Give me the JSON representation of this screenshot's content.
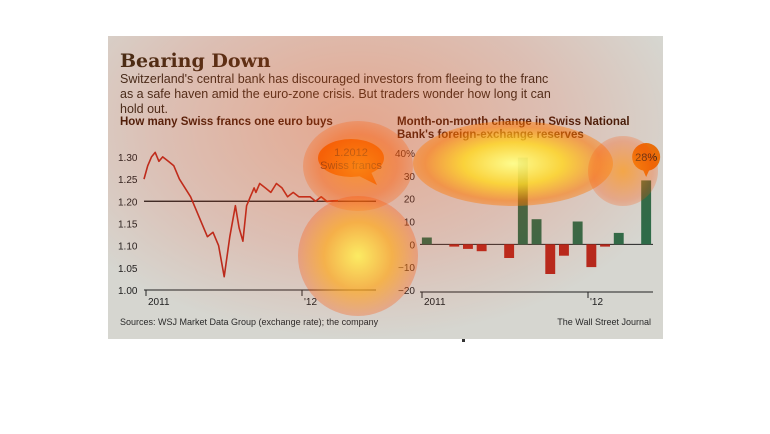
{
  "title": "Bearing Down",
  "subtitle": "Switzerland's central bank has discouraged investors from fleeing to the franc as a safe haven amid the euro-zone crisis. But traders wonder how long it can hold out.",
  "source": "Sources: WSJ Market Data Group (exchange rate); the company",
  "credit": "The Wall Street Journal",
  "colors": {
    "line": "#b5281c",
    "positive_bar": "#2e6b48",
    "negative_bar": "#b5281c",
    "callout": "#e8700a",
    "frame": "#d6d6d0"
  },
  "chart_data": [
    {
      "type": "line",
      "title": "How many Swiss francs one euro buys",
      "x_ticks": [
        "2011",
        "'12"
      ],
      "y_ticks": [
        "1.30",
        "1.25",
        "1.20",
        "1.15",
        "1.10",
        "1.05",
        "1.00"
      ],
      "ylim": [
        1.0,
        1.32
      ],
      "reference_line": 1.2,
      "annotation": {
        "value": "1.2012",
        "label": "Swiss francs"
      },
      "series": [
        {
          "x": [
            0,
            2,
            4,
            6,
            8,
            10,
            13,
            16,
            19,
            22,
            25,
            28,
            31,
            34,
            37,
            40,
            43,
            46,
            49,
            51,
            53,
            55,
            56,
            57,
            58,
            59,
            60,
            62,
            65,
            68,
            71,
            74,
            77,
            80,
            83,
            86,
            89,
            92,
            95,
            98,
            101,
            104
          ],
          "values": [
            1.25,
            1.28,
            1.3,
            1.31,
            1.29,
            1.3,
            1.29,
            1.28,
            1.25,
            1.23,
            1.21,
            1.18,
            1.15,
            1.12,
            1.13,
            1.1,
            1.03,
            1.12,
            1.19,
            1.14,
            1.11,
            1.19,
            1.2,
            1.21,
            1.22,
            1.23,
            1.22,
            1.24,
            1.23,
            1.22,
            1.24,
            1.23,
            1.21,
            1.22,
            1.21,
            1.21,
            1.21,
            1.2,
            1.21,
            1.2,
            1.201,
            1.2012
          ]
        }
      ]
    },
    {
      "type": "bar",
      "title": "Month-on-month change in Swiss National Bank's foreign-exchange reserves",
      "x_ticks": [
        "2011",
        "'12"
      ],
      "y_ticks": [
        "40%",
        "30",
        "20",
        "10",
        "0",
        "−10",
        "−20"
      ],
      "ylim": [
        -20,
        40
      ],
      "annotation": {
        "value": "28%"
      },
      "values": [
        3,
        0,
        -1,
        -2,
        -3,
        0,
        -6,
        38,
        11,
        -13,
        -5,
        10,
        -10,
        -1,
        5,
        0,
        28
      ]
    }
  ]
}
